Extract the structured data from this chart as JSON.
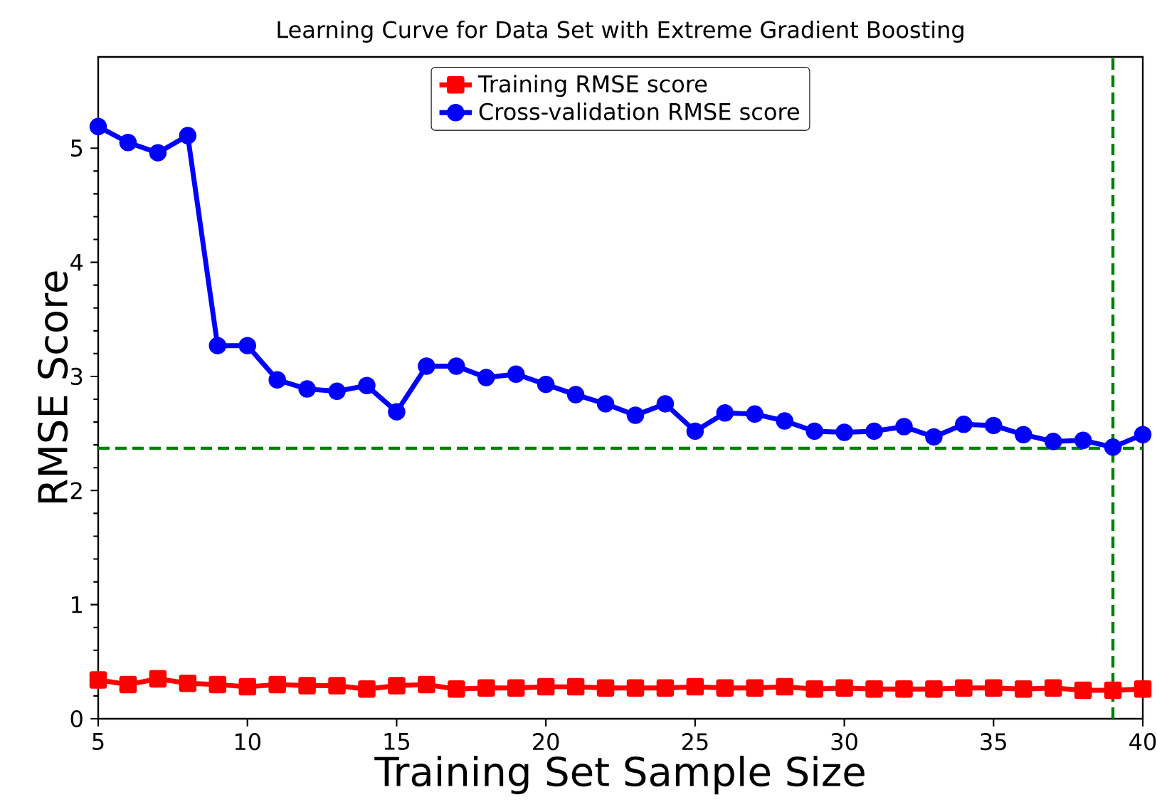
{
  "chart_data": {
    "type": "line",
    "title": "Learning Curve for Data Set with Extreme Gradient Boosting",
    "xlabel": "Training Set Sample Size",
    "ylabel": "RMSE Score",
    "x": [
      5,
      6,
      7,
      8,
      9,
      10,
      11,
      12,
      13,
      14,
      15,
      16,
      17,
      18,
      19,
      20,
      21,
      22,
      23,
      24,
      25,
      26,
      27,
      28,
      29,
      30,
      31,
      32,
      33,
      34,
      35,
      36,
      37,
      38,
      39,
      40
    ],
    "series": [
      {
        "name": "Training RMSE score",
        "color": "#ff0000",
        "marker": "square",
        "values": [
          0.34,
          0.3,
          0.35,
          0.31,
          0.3,
          0.28,
          0.3,
          0.29,
          0.29,
          0.26,
          0.29,
          0.3,
          0.26,
          0.27,
          0.27,
          0.28,
          0.28,
          0.27,
          0.27,
          0.27,
          0.28,
          0.27,
          0.27,
          0.28,
          0.26,
          0.27,
          0.26,
          0.26,
          0.26,
          0.27,
          0.27,
          0.26,
          0.27,
          0.25,
          0.25,
          0.26
        ]
      },
      {
        "name": "Cross-validation RMSE score",
        "color": "#0000ff",
        "marker": "circle",
        "values": [
          5.19,
          5.05,
          4.96,
          5.11,
          3.27,
          3.27,
          2.97,
          2.89,
          2.87,
          2.92,
          2.69,
          3.09,
          3.09,
          2.99,
          3.02,
          2.93,
          2.84,
          2.76,
          2.66,
          2.76,
          2.52,
          2.68,
          2.67,
          2.61,
          2.52,
          2.51,
          2.52,
          2.56,
          2.47,
          2.58,
          2.57,
          2.49,
          2.43,
          2.44,
          2.38,
          2.49
        ]
      }
    ],
    "xlim": [
      5,
      40
    ],
    "ylim": [
      0,
      5.8
    ],
    "xticks": [
      5,
      10,
      15,
      20,
      25,
      30,
      35,
      40
    ],
    "yticks": [
      0,
      1,
      2,
      3,
      4,
      5
    ],
    "ref_lines": [
      {
        "axis": "y",
        "value": 2.37,
        "color": "#008000",
        "line_style": "dashed"
      },
      {
        "axis": "x",
        "value": 39,
        "color": "#008000",
        "line_style": "dashed"
      }
    ],
    "legend": "top",
    "grid": false,
    "line_style": "solid"
  }
}
